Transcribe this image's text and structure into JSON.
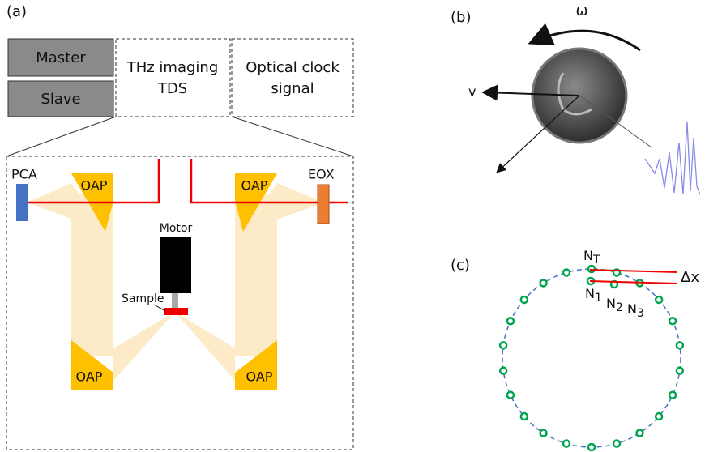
{
  "panel_a": {
    "label": "(a)",
    "master": "Master",
    "slave": "Slave",
    "thz_box": [
      "THz imaging",
      "TDS"
    ],
    "clock_box": [
      "Optical clock",
      "signal"
    ],
    "pca": "PCA",
    "eox": "EOX",
    "oap_labels": [
      "OAP",
      "OAP",
      "OAP",
      "OAP"
    ],
    "motor": "Motor",
    "sample": "Sample"
  },
  "panel_b": {
    "label": "(b)",
    "omega": "ω",
    "velocity": "v"
  },
  "panel_c": {
    "label": "(c)",
    "delta_x": "Δx",
    "nodes": [
      {
        "main": "N",
        "sub": "T"
      },
      {
        "main": "N",
        "sub": "1"
      },
      {
        "main": "N",
        "sub": "2"
      },
      {
        "main": "N",
        "sub": "3"
      }
    ]
  }
}
